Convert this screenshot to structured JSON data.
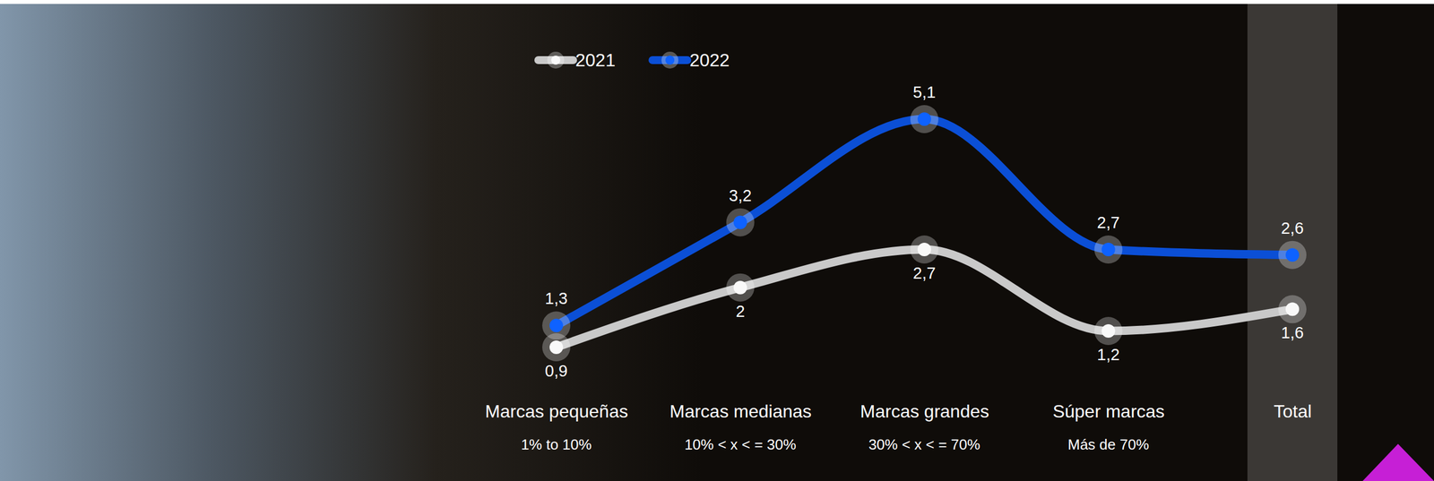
{
  "chart_data": {
    "type": "line",
    "categories": [
      "Marcas pequeñas",
      "Marcas medianas",
      "Marcas grandes",
      "Súper marcas",
      "Total"
    ],
    "subcategories": [
      "1% to 10%",
      "10% < x < = 30%",
      "30% < x < = 70%",
      "Más de 70%",
      null
    ],
    "series": [
      {
        "name": "2021",
        "color": "#c9c9c9",
        "marker": "circle",
        "values": [
          0.9,
          2,
          2.7,
          1.2,
          1.6
        ],
        "value_labels": [
          "0,9",
          "2",
          "2,7",
          "1,2",
          "1,6"
        ]
      },
      {
        "name": "2022",
        "color": "#0b4fd6",
        "marker": "circle",
        "values": [
          1.3,
          3.2,
          5.1,
          2.7,
          2.6
        ],
        "value_labels": [
          "1,3",
          "3,2",
          "5,1",
          "2,7",
          "2,6"
        ]
      }
    ],
    "ylim": [
      0,
      6
    ],
    "tick_labels": false,
    "data_labels": true,
    "legend": "top",
    "grid": false
  }
}
